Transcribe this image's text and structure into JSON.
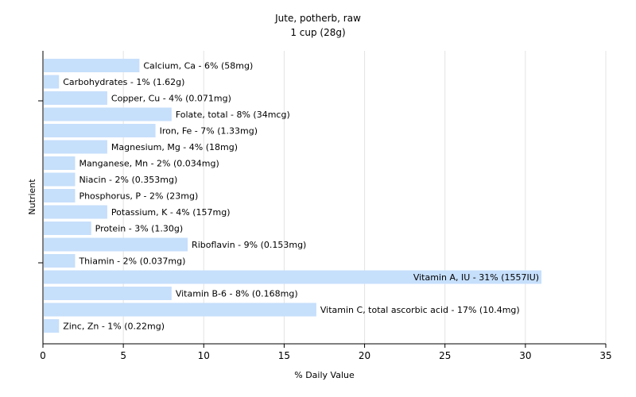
{
  "chart_data": {
    "type": "bar",
    "orientation": "horizontal",
    "title": "Jute, potherb, raw",
    "subtitle": "1 cup (28g)",
    "xlabel": "% Daily Value",
    "ylabel": "Nutrient",
    "xlim": [
      0,
      35
    ],
    "xticks": [
      "0",
      "5",
      "10",
      "15",
      "20",
      "25",
      "30",
      "35"
    ],
    "grid": "vertical",
    "bar_color": "#c6dffb",
    "categories": [
      "Calcium, Ca",
      "Carbohydrates",
      "Copper, Cu",
      "Folate, total",
      "Iron, Fe",
      "Magnesium, Mg",
      "Manganese, Mn",
      "Niacin",
      "Phosphorus, P",
      "Potassium, K",
      "Protein",
      "Riboflavin",
      "Thiamin",
      "Vitamin A, IU",
      "Vitamin B-6",
      "Vitamin C, total ascorbic acid",
      "Zinc, Zn"
    ],
    "values": [
      6,
      1,
      4,
      8,
      7,
      4,
      2,
      2,
      2,
      4,
      3,
      9,
      2,
      31,
      8,
      17,
      1
    ],
    "labels": [
      "Calcium, Ca - 6% (58mg)",
      "Carbohydrates - 1% (1.62g)",
      "Copper, Cu - 4% (0.071mg)",
      "Folate, total - 8% (34mcg)",
      "Iron, Fe - 7% (1.33mg)",
      "Magnesium, Mg - 4% (18mg)",
      "Manganese, Mn - 2% (0.034mg)",
      "Niacin - 2% (0.353mg)",
      "Phosphorus, P - 2% (23mg)",
      "Potassium, K - 4% (157mg)",
      "Protein - 3% (1.30g)",
      "Riboflavin - 9% (0.153mg)",
      "Thiamin - 2% (0.037mg)",
      "Vitamin A, IU - 31% (1557IU)",
      "Vitamin B-6 - 8% (0.168mg)",
      "Vitamin C, total ascorbic acid - 17% (10.4mg)",
      "Zinc, Zn - 1% (0.22mg)"
    ]
  }
}
